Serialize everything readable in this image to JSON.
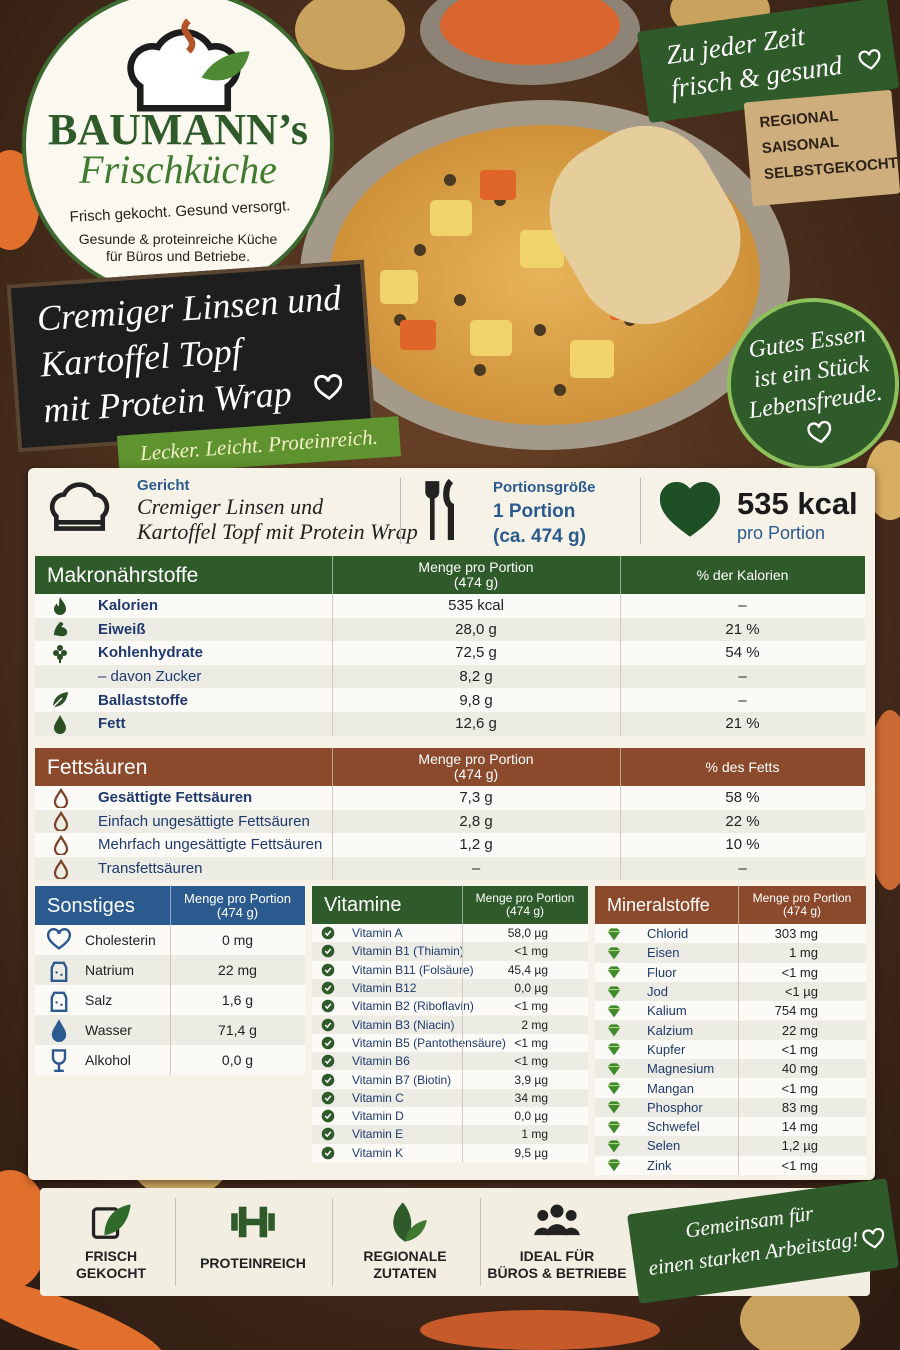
{
  "logo": {
    "brand": "BAUMANN’s",
    "subbrand": "Frischküche",
    "slogan": "Frisch gekocht. Gesund versorgt.",
    "description": [
      "Gesunde & proteinreiche Küche",
      "für Büros und Betriebe."
    ]
  },
  "badge_top": [
    "Zu jeder Zeit",
    "frisch & gesund"
  ],
  "sign": [
    "REGIONAL",
    "SAISONAL",
    "SELBSTGEKOCHT"
  ],
  "title": [
    "Cremiger Linsen und",
    "Kartoffel Topf",
    "mit Protein Wrap"
  ],
  "tagline": "Lecker. Leicht. Proteinreich.",
  "circle_quote": [
    "Gutes Essen",
    "ist ein Stück",
    "Lebensfreude."
  ],
  "info": {
    "dish_label": "Gericht",
    "dish": [
      "Cremiger Linsen und",
      "Kartoffel Topf mit Protein Wrap"
    ],
    "portion_label": "Portionsgröße",
    "portion": [
      "1 Portion",
      "(ca. 474 g)"
    ],
    "energy": "535 kcal",
    "energy_note": "pro Portion"
  },
  "macros": {
    "header": {
      "title": "Makronährstoffe",
      "amount": [
        "Menge pro Portion",
        "(474 g)"
      ],
      "share": "% der Kalorien"
    },
    "rows": [
      [
        "Kalorien",
        "535 kcal",
        "–"
      ],
      [
        "Eiweiß",
        "28,0 g",
        "21 %"
      ],
      [
        "Kohlenhydrate",
        "72,5 g",
        "54 %"
      ],
      [
        "– davon Zucker",
        "8,2 g",
        "–"
      ],
      [
        "Ballaststoffe",
        "9,8 g",
        "–"
      ],
      [
        "Fett",
        "12,6 g",
        "21 %"
      ]
    ]
  },
  "fatty_acids": {
    "header": {
      "title": "Fettsäuren",
      "amount": [
        "Menge pro Portion",
        "(474 g)"
      ],
      "share": "% des Fetts"
    },
    "rows": [
      [
        "Gesättigte Fettsäuren",
        "7,3 g",
        "58 %"
      ],
      [
        "Einfach ungesättigte Fettsäuren",
        "2,8 g",
        "22 %"
      ],
      [
        "Mehrfach ungesättigte Fettsäuren",
        "1,2 g",
        "10 %"
      ],
      [
        "Transfettsäuren",
        "–",
        "–"
      ]
    ]
  },
  "other": {
    "header": {
      "title": "Sonstiges",
      "amount": [
        "Menge pro Portion",
        "(474 g)"
      ]
    },
    "rows": [
      [
        "Cholesterin",
        "0 mg"
      ],
      [
        "Natrium",
        "22 mg"
      ],
      [
        "Salz",
        "1,6 g"
      ],
      [
        "Wasser",
        "71,4 g"
      ],
      [
        "Alkohol",
        "0,0 g"
      ]
    ]
  },
  "vitamins": {
    "header": {
      "title": "Vitamine",
      "amount": [
        "Menge pro Portion",
        "(474 g)"
      ]
    },
    "rows": [
      [
        "Vitamin A",
        "58,0 µg"
      ],
      [
        "Vitamin B1 (Thiamin)",
        "<1 mg"
      ],
      [
        "Vitamin B11 (Folsäure)",
        "45,4 µg"
      ],
      [
        "Vitamin B12",
        "0,0 µg"
      ],
      [
        "Vitamin B2 (Riboflavin)",
        "<1 mg"
      ],
      [
        "Vitamin B3 (Niacin)",
        "2 mg"
      ],
      [
        "Vitamin B5 (Pantothensäure)",
        "<1 mg"
      ],
      [
        "Vitamin B6",
        "<1 mg"
      ],
      [
        "Vitamin B7 (Biotin)",
        "3,9 µg"
      ],
      [
        "Vitamin C",
        "34 mg"
      ],
      [
        "Vitamin D",
        "0,0 µg"
      ],
      [
        "Vitamin E",
        "1 mg"
      ],
      [
        "Vitamin K",
        "9,5 µg"
      ]
    ]
  },
  "minerals": {
    "header": {
      "title": "Mineralstoffe",
      "amount": [
        "Menge pro Portion",
        "(474 g)"
      ]
    },
    "rows": [
      [
        "Chlorid",
        "303 mg"
      ],
      [
        "Eisen",
        "1 mg"
      ],
      [
        "Fluor",
        "<1 mg"
      ],
      [
        "Jod",
        "<1 µg"
      ],
      [
        "Kalium",
        "754 mg"
      ],
      [
        "Kalzium",
        "22 mg"
      ],
      [
        "Kupfer",
        "<1 mg"
      ],
      [
        "Magnesium",
        "40 mg"
      ],
      [
        "Mangan",
        "<1 mg"
      ],
      [
        "Phosphor",
        "83 mg"
      ],
      [
        "Schwefel",
        "14 mg"
      ],
      [
        "Selen",
        "1,2 µg"
      ],
      [
        "Zink",
        "<1 mg"
      ]
    ]
  },
  "features": [
    [
      "FRISCH",
      "GEKOCHT"
    ],
    [
      "PROTEINREICH"
    ],
    [
      "REGIONALE",
      "ZUTATEN"
    ],
    [
      "IDEAL FÜR",
      "BÜROS & BETRIEBE"
    ]
  ],
  "footer_banner": [
    "Gemeinsam für",
    "einen starken Arbeitstag!"
  ]
}
